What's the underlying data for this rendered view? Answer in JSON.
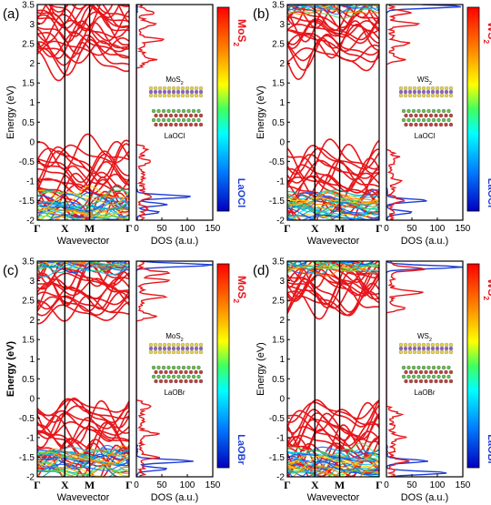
{
  "figure": {
    "panels": [
      {
        "label": "(a)",
        "band_axis_label": "Wavevector",
        "energy_axis_label": "Energy (eV)",
        "k_points": [
          "Γ",
          "X",
          "M",
          "Γ"
        ],
        "energy_ticks": [
          "3.5",
          "3",
          "2.5",
          "2",
          "1.5",
          "1",
          "0.5",
          "0",
          "-0.5",
          "-1",
          "-1.5",
          "-2"
        ],
        "dos_axis_label": "DOS (a.u.)",
        "dos_ticks": [
          "0",
          "50",
          "100",
          "150"
        ],
        "colorbar_top": {
          "base": "MoS",
          "sub": "2"
        },
        "colorbar_bottom": "LaOCl",
        "inset_top": {
          "base": "MoS",
          "sub": "2"
        },
        "inset_bottom": "LaOCl",
        "show_energy_label": true,
        "energy_label_bold": false
      },
      {
        "label": "(b)",
        "band_axis_label": "Wavevector",
        "energy_axis_label": "Energy (eV)",
        "k_points": [
          "Γ",
          "X",
          "M",
          "Γ"
        ],
        "energy_ticks": [
          "3.5",
          "3",
          "2.5",
          "2",
          "1.5",
          "1",
          "0.5",
          "0",
          "-0.5",
          "-1",
          "-1.5",
          "-2"
        ],
        "dos_axis_label": "DOS (a.u.)",
        "dos_ticks": [
          "0",
          "50",
          "100",
          "150"
        ],
        "colorbar_top": {
          "base": "WS",
          "sub": "2"
        },
        "colorbar_bottom": "LaOCl",
        "inset_top": {
          "base": "WS",
          "sub": "2"
        },
        "inset_bottom": "LaOCl",
        "show_energy_label": true,
        "energy_label_bold": false
      },
      {
        "label": "(c)",
        "band_axis_label": "Wavevector",
        "energy_axis_label": "Energy (eV)",
        "k_points": [
          "Γ",
          "X",
          "M",
          "Γ"
        ],
        "energy_ticks": [
          "3.5",
          "3",
          "2.5",
          "2",
          "1.5",
          "1",
          "0.5",
          "0",
          "-0.5",
          "-1",
          "-1.5",
          "-2"
        ],
        "dos_axis_label": "DOS (a.u.)",
        "dos_ticks": [
          "0",
          "50",
          "100",
          "150"
        ],
        "colorbar_top": {
          "base": "MoS",
          "sub": "2"
        },
        "colorbar_bottom": "LaOBr",
        "inset_top": {
          "base": "MoS",
          "sub": "2"
        },
        "inset_bottom": "LaOBr",
        "show_energy_label": true,
        "energy_label_bold": true
      },
      {
        "label": "(d)",
        "band_axis_label": "Wavevector",
        "energy_axis_label": "Energy (eV)",
        "k_points": [
          "Γ",
          "X",
          "M",
          "Γ"
        ],
        "energy_ticks": [
          "3.5",
          "3",
          "2.5",
          "2",
          "1.5",
          "1",
          "0.5",
          "0",
          "-0.5",
          "-1",
          "-1.5",
          "-2"
        ],
        "dos_axis_label": "DOS (a.u.)",
        "dos_ticks": [
          "0",
          "50",
          "100",
          "150"
        ],
        "colorbar_top": {
          "base": "WS",
          "sub": "2"
        },
        "colorbar_bottom": "LaOBr",
        "inset_top": {
          "base": "WS",
          "sub": "2"
        },
        "inset_bottom": "LaOBr",
        "show_energy_label": true,
        "energy_label_bold": false
      }
    ],
    "colors": {
      "band": "#e8161b",
      "tmd_label": "#e8161b",
      "substrate_label": "#1f3fd6",
      "dos_tmd": "#e8161b",
      "dos_substrate": "#1f3fd6"
    }
  },
  "chart_data": [
    {
      "type": "line",
      "panel": "(a)",
      "ylim": [
        -2,
        3.5
      ],
      "dos_xlim": [
        0,
        150
      ],
      "conduction_band_min": 1.9,
      "valence_band_max": -0.1,
      "dos_tmd_peaks": [
        [
          3.3,
          30
        ],
        [
          3.0,
          35
        ],
        [
          2.6,
          40
        ],
        [
          2.1,
          25
        ],
        [
          -0.2,
          12
        ],
        [
          -0.5,
          18
        ],
        [
          -1.4,
          25
        ],
        [
          -1.7,
          15
        ]
      ],
      "dos_substrate_peaks": [
        [
          -1.4,
          110
        ],
        [
          -1.6,
          60
        ],
        [
          -1.8,
          45
        ]
      ]
    },
    {
      "type": "line",
      "panel": "(b)",
      "ylim": [
        -2,
        3.5
      ],
      "dos_xlim": [
        0,
        150
      ],
      "conduction_band_min": 2.0,
      "valence_band_max": -0.2,
      "dos_tmd_peaks": [
        [
          3.3,
          40
        ],
        [
          3.0,
          60
        ],
        [
          2.5,
          35
        ],
        [
          2.1,
          25
        ],
        [
          -0.4,
          12
        ],
        [
          -1.0,
          15
        ],
        [
          -1.5,
          30
        ]
      ],
      "dos_substrate_peaks": [
        [
          3.45,
          150
        ],
        [
          -1.5,
          80
        ],
        [
          -1.8,
          50
        ]
      ]
    },
    {
      "type": "line",
      "panel": "(c)",
      "ylim": [
        -2,
        3.5
      ],
      "dos_xlim": [
        0,
        150
      ],
      "conduction_band_min": 2.0,
      "valence_band_max": -0.05,
      "dos_tmd_peaks": [
        [
          3.2,
          55
        ],
        [
          3.0,
          60
        ],
        [
          2.6,
          45
        ],
        [
          2.1,
          30
        ],
        [
          -0.2,
          15
        ],
        [
          -0.9,
          30
        ],
        [
          -1.5,
          35
        ]
      ],
      "dos_substrate_peaks": [
        [
          3.4,
          150
        ],
        [
          -1.6,
          110
        ],
        [
          -1.8,
          60
        ]
      ]
    },
    {
      "type": "line",
      "panel": "(d)",
      "ylim": [
        -2,
        3.5
      ],
      "dos_xlim": [
        0,
        150
      ],
      "conduction_band_min": 2.2,
      "valence_band_max": -0.2,
      "dos_tmd_peaks": [
        [
          3.3,
          70
        ],
        [
          2.7,
          65
        ],
        [
          2.3,
          30
        ],
        [
          -0.4,
          15
        ],
        [
          -1.0,
          25
        ],
        [
          -1.6,
          35
        ]
      ],
      "dos_substrate_peaks": [
        [
          3.35,
          150
        ],
        [
          -1.6,
          80
        ],
        [
          -1.9,
          120
        ]
      ]
    }
  ]
}
